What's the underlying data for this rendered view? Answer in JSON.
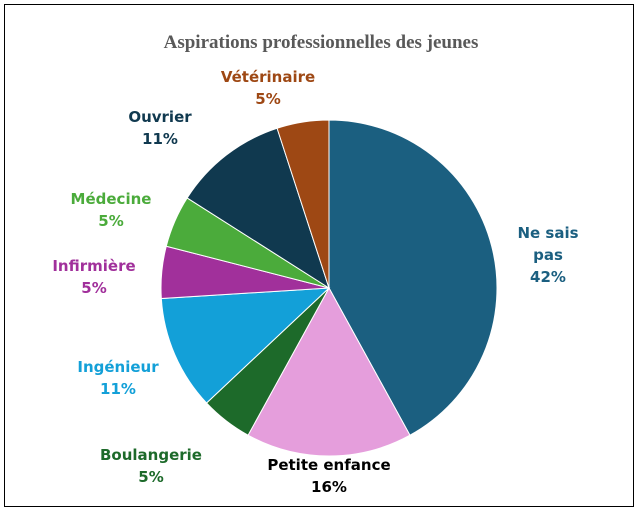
{
  "chart_data": {
    "type": "pie",
    "title": "Aspirations professionnelles des jeunes",
    "categories": [
      "Ne sais pas",
      "Petite enfance",
      "Boulangerie",
      "Ingénieur",
      "Infirmière",
      "Médecine",
      "Ouvrier",
      "Vétérinaire"
    ],
    "values": [
      42,
      16,
      5,
      11,
      5,
      5,
      11,
      5
    ],
    "value_labels": [
      "42%",
      "16%",
      "5%",
      "11%",
      "5%",
      "5%",
      "11%",
      "5%"
    ],
    "colors": [
      "#1b5f80",
      "#e59edc",
      "#1d6a2a",
      "#13a0d8",
      "#a1309b",
      "#4bab3b",
      "#10394f",
      "#9e4814"
    ],
    "label_colors": [
      "#1b5f80",
      "#000000",
      "#1d6a2a",
      "#13a0d8",
      "#a1309b",
      "#4bab3b",
      "#10394f",
      "#9e4814"
    ]
  }
}
